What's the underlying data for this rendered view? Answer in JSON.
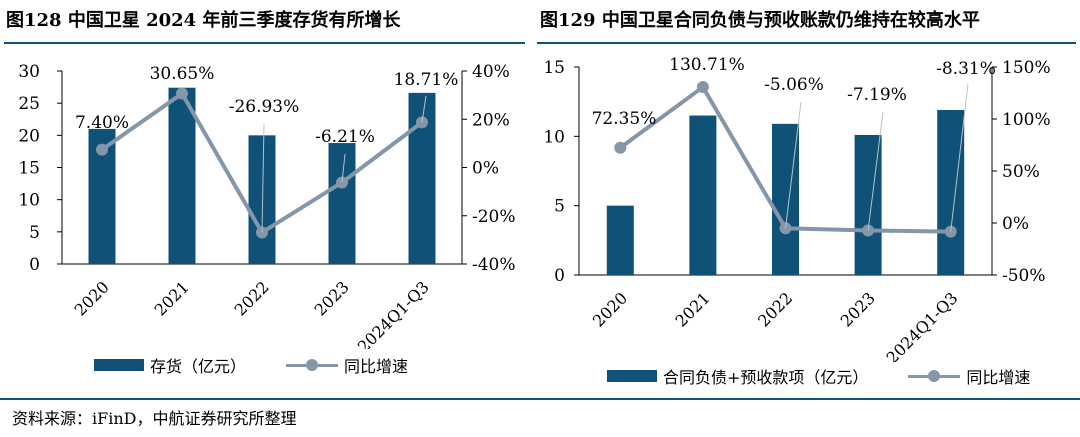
{
  "chart_data": [
    {
      "type": "bar",
      "title": "图128 中国卫星 2024 年前三季度存货有所增长",
      "categories": [
        "2020",
        "2021",
        "2022",
        "2023",
        "2024Q1-Q3"
      ],
      "series": [
        {
          "name": "存货（亿元）",
          "type": "bar",
          "axis": "left",
          "values": [
            21.0,
            27.4,
            20.0,
            18.8,
            26.6
          ]
        },
        {
          "name": "同比增速",
          "type": "line",
          "axis": "right",
          "values": [
            7.4,
            30.65,
            -26.93,
            -6.21,
            18.71
          ]
        }
      ],
      "data_labels": [
        "7.40%",
        "30.65%",
        "-26.93%",
        "-6.21%",
        "18.71%"
      ],
      "y_left": {
        "range": [
          0,
          30
        ],
        "ticks": [
          "0",
          "5",
          "10",
          "15",
          "20",
          "25",
          "30"
        ]
      },
      "y_right": {
        "range": [
          -40,
          40
        ],
        "ticks": [
          "-40%",
          "-20%",
          "0%",
          "20%",
          "40%"
        ]
      },
      "legend": [
        "存货（亿元）",
        "同比增速"
      ],
      "legend_position": "bottom",
      "colors": {
        "bar": "#0f5177",
        "line": "#8496a8"
      }
    },
    {
      "type": "bar",
      "title": "图129 中国卫星合同负债与预收账款仍维持在较高水平",
      "categories": [
        "2020",
        "2021",
        "2022",
        "2023",
        "2024Q1-Q3"
      ],
      "series": [
        {
          "name": "合同负债+预收款项（亿元）",
          "type": "bar",
          "axis": "left",
          "values": [
            5.0,
            11.5,
            10.9,
            10.1,
            11.9
          ]
        },
        {
          "name": "同比增速",
          "type": "line",
          "axis": "right",
          "values": [
            72.35,
            130.71,
            -5.06,
            -7.19,
            -8.31
          ]
        }
      ],
      "data_labels": [
        "72.35%",
        "130.71%",
        "-5.06%",
        "-7.19%",
        "-8.31%"
      ],
      "y_left": {
        "range": [
          0,
          15
        ],
        "ticks": [
          "0",
          "5",
          "10",
          "15"
        ]
      },
      "y_right": {
        "range": [
          -50,
          150
        ],
        "ticks": [
          "-50%",
          "0%",
          "50%",
          "100%",
          "150%"
        ]
      },
      "legend": [
        "合同负债+预收款项（亿元）",
        "同比增速"
      ],
      "legend_position": "bottom",
      "colors": {
        "bar": "#0f5177",
        "line": "#8496a8"
      }
    }
  ],
  "source": "资料来源：iFinD，中航证券研究所整理"
}
